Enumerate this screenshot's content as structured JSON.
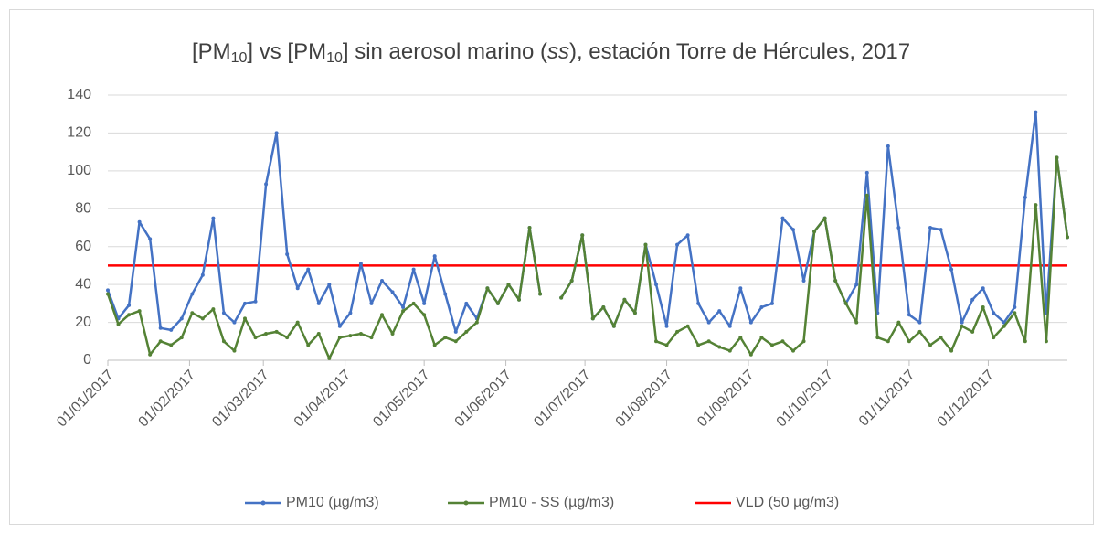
{
  "chart_data": {
    "type": "line",
    "title": [
      "[PM",
      "10",
      "] vs [PM",
      "10",
      "] sin aerosol marino (",
      "ss",
      "), estación Torre de Hércules, 2017"
    ],
    "x": [
      "01/01/2017",
      "05/01/2017",
      "09/01/2017",
      "13/01/2017",
      "17/01/2017",
      "21/01/2017",
      "25/01/2017",
      "29/01/2017",
      "02/02/2017",
      "06/02/2017",
      "10/02/2017",
      "14/02/2017",
      "18/02/2017",
      "22/02/2017",
      "26/02/2017",
      "02/03/2017",
      "06/03/2017",
      "10/03/2017",
      "14/03/2017",
      "18/03/2017",
      "22/03/2017",
      "26/03/2017",
      "30/03/2017",
      "03/04/2017",
      "07/04/2017",
      "11/04/2017",
      "15/04/2017",
      "19/04/2017",
      "23/04/2017",
      "27/04/2017",
      "01/05/2017",
      "05/05/2017",
      "09/05/2017",
      "13/05/2017",
      "17/05/2017",
      "21/05/2017",
      "25/05/2017",
      "29/05/2017",
      "02/06/2017",
      "06/06/2017",
      "10/06/2017",
      "14/06/2017",
      "18/06/2017",
      "22/06/2017",
      "26/06/2017",
      "30/06/2017",
      "04/07/2017",
      "08/07/2017",
      "12/07/2017",
      "16/07/2017",
      "20/07/2017",
      "24/07/2017",
      "28/07/2017",
      "01/08/2017",
      "05/08/2017",
      "09/08/2017",
      "13/08/2017",
      "17/08/2017",
      "21/08/2017",
      "25/08/2017",
      "29/08/2017",
      "02/09/2017",
      "06/09/2017",
      "10/09/2017",
      "14/09/2017",
      "18/09/2017",
      "22/09/2017",
      "26/09/2017",
      "30/09/2017",
      "04/10/2017",
      "08/10/2017",
      "12/10/2017",
      "16/10/2017",
      "20/10/2017",
      "24/10/2017",
      "28/10/2017",
      "01/11/2017",
      "05/11/2017",
      "09/11/2017",
      "13/11/2017",
      "17/11/2017",
      "21/11/2017",
      "25/11/2017",
      "29/11/2017",
      "03/12/2017",
      "07/12/2017",
      "11/12/2017",
      "15/12/2017",
      "19/12/2017",
      "23/12/2017",
      "27/12/2017",
      "31/12/2017"
    ],
    "series": [
      {
        "name": "PM10 (µg/m3)",
        "color": "#4472c4",
        "values": [
          37,
          22,
          29,
          73,
          64,
          17,
          16,
          22,
          35,
          45,
          75,
          25,
          20,
          30,
          31,
          93,
          120,
          56,
          38,
          48,
          30,
          40,
          18,
          25,
          51,
          30,
          42,
          36,
          28,
          48,
          30,
          55,
          35,
          15,
          30,
          22,
          38,
          30,
          40,
          32,
          70,
          35,
          null,
          33,
          42,
          66,
          22,
          28,
          18,
          32,
          25,
          61,
          40,
          18,
          61,
          66,
          30,
          20,
          26,
          18,
          38,
          20,
          28,
          30,
          75,
          69,
          42,
          68,
          75,
          42,
          30,
          40,
          99,
          25,
          113,
          70,
          24,
          20,
          70,
          69,
          48,
          20,
          32,
          38,
          25,
          20,
          28,
          86,
          131,
          25,
          107,
          65
        ]
      },
      {
        "name": "PM10 - SS (µg/m3)",
        "color": "#548235",
        "values": [
          35,
          19,
          24,
          26,
          3,
          10,
          8,
          12,
          25,
          22,
          27,
          10,
          5,
          22,
          12,
          14,
          15,
          12,
          20,
          8,
          14,
          1,
          12,
          13,
          14,
          12,
          24,
          14,
          26,
          30,
          24,
          8,
          12,
          10,
          15,
          20,
          38,
          30,
          40,
          32,
          70,
          35,
          null,
          33,
          42,
          66,
          22,
          28,
          18,
          32,
          25,
          61,
          10,
          8,
          15,
          18,
          8,
          10,
          7,
          5,
          12,
          3,
          12,
          8,
          10,
          5,
          10,
          68,
          75,
          42,
          30,
          20,
          87,
          12,
          10,
          20,
          10,
          15,
          8,
          12,
          5,
          18,
          15,
          28,
          12,
          18,
          25,
          10,
          82,
          10,
          107,
          65
        ]
      }
    ],
    "hline": {
      "name": "VLD (50 µg/m3)",
      "color": "#ff0000",
      "value": 50
    },
    "xlim": [
      "01/01/2017",
      "31/12/2017"
    ],
    "xticks": [
      "01/01/2017",
      "01/02/2017",
      "01/03/2017",
      "01/04/2017",
      "01/05/2017",
      "01/06/2017",
      "01/07/2017",
      "01/08/2017",
      "01/09/2017",
      "01/10/2017",
      "01/11/2017",
      "01/12/2017"
    ],
    "ylim": [
      0,
      140
    ],
    "yticks": [
      0,
      20,
      40,
      60,
      80,
      100,
      120,
      140
    ],
    "grid": true,
    "legend": "bottom"
  }
}
